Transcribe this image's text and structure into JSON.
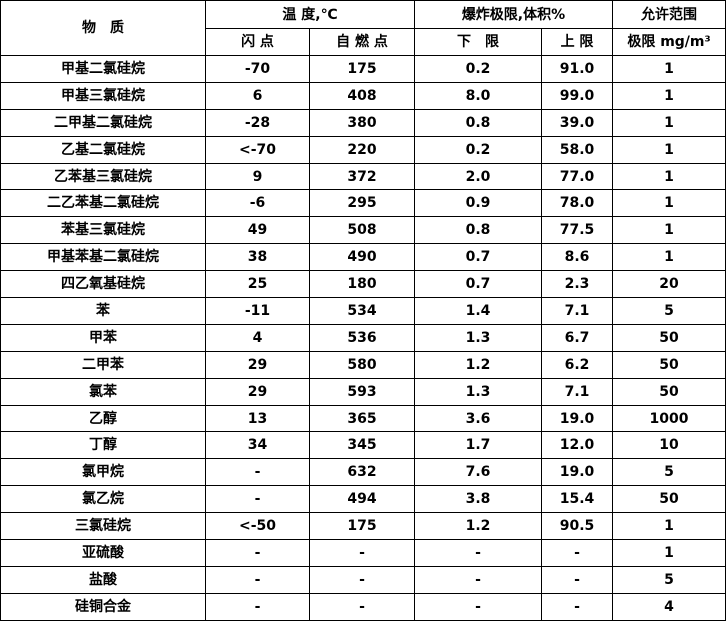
{
  "header": {
    "substance": "物　质",
    "temperature": "温 度,℃",
    "flash_point": "闪 点",
    "autoignition": "自 燃 点",
    "explosion_limit": "爆炸极限,体积%",
    "lower": "下　限",
    "upper": "上 限",
    "allowed_range": "允许范围",
    "limit_unit": "极限 mg/m³"
  },
  "rows": [
    [
      "甲基二氯硅烷",
      "-70",
      "175",
      "0.2",
      "91.0",
      "1"
    ],
    [
      "甲基三氯硅烷",
      "6",
      "408",
      "8.0",
      "99.0",
      "1"
    ],
    [
      "二甲基二氯硅烷",
      "-28",
      "380",
      "0.8",
      "39.0",
      "1"
    ],
    [
      "乙基二氯硅烷",
      "<-70",
      "220",
      "0.2",
      "58.0",
      "1"
    ],
    [
      "乙苯基三氯硅烷",
      "9",
      "372",
      "2.0",
      "77.0",
      "1"
    ],
    [
      "二乙苯基二氯硅烷",
      "-6",
      "295",
      "0.9",
      "78.0",
      "1"
    ],
    [
      "苯基三氯硅烷",
      "49",
      "508",
      "0.8",
      "77.5",
      "1"
    ],
    [
      "甲基苯基二氯硅烷",
      "38",
      "490",
      "0.7",
      "8.6",
      "1"
    ],
    [
      "四乙氧基硅烷",
      "25",
      "180",
      "0.7",
      "2.3",
      "20"
    ],
    [
      "苯",
      "-11",
      "534",
      "1.4",
      "7.1",
      "5"
    ],
    [
      "甲苯",
      "4",
      "536",
      "1.3",
      "6.7",
      "50"
    ],
    [
      "二甲苯",
      "29",
      "580",
      "1.2",
      "6.2",
      "50"
    ],
    [
      "氯苯",
      "29",
      "593",
      "1.3",
      "7.1",
      "50"
    ],
    [
      "乙醇",
      "13",
      "365",
      "3.6",
      "19.0",
      "1000"
    ],
    [
      "丁醇",
      "34",
      "345",
      "1.7",
      "12.0",
      "10"
    ],
    [
      "氯甲烷",
      "-",
      "632",
      "7.6",
      "19.0",
      "5"
    ],
    [
      "氯乙烷",
      "-",
      "494",
      "3.8",
      "15.4",
      "50"
    ],
    [
      "三氯硅烷",
      "<-50",
      "175",
      "1.2",
      "90.5",
      "1"
    ],
    [
      "亚硫酸",
      "-",
      "-",
      "-",
      "-",
      "1"
    ],
    [
      "盐酸",
      "-",
      "-",
      "-",
      "-",
      "5"
    ],
    [
      "硅铜合金",
      "-",
      "-",
      "-",
      "-",
      "4"
    ]
  ]
}
